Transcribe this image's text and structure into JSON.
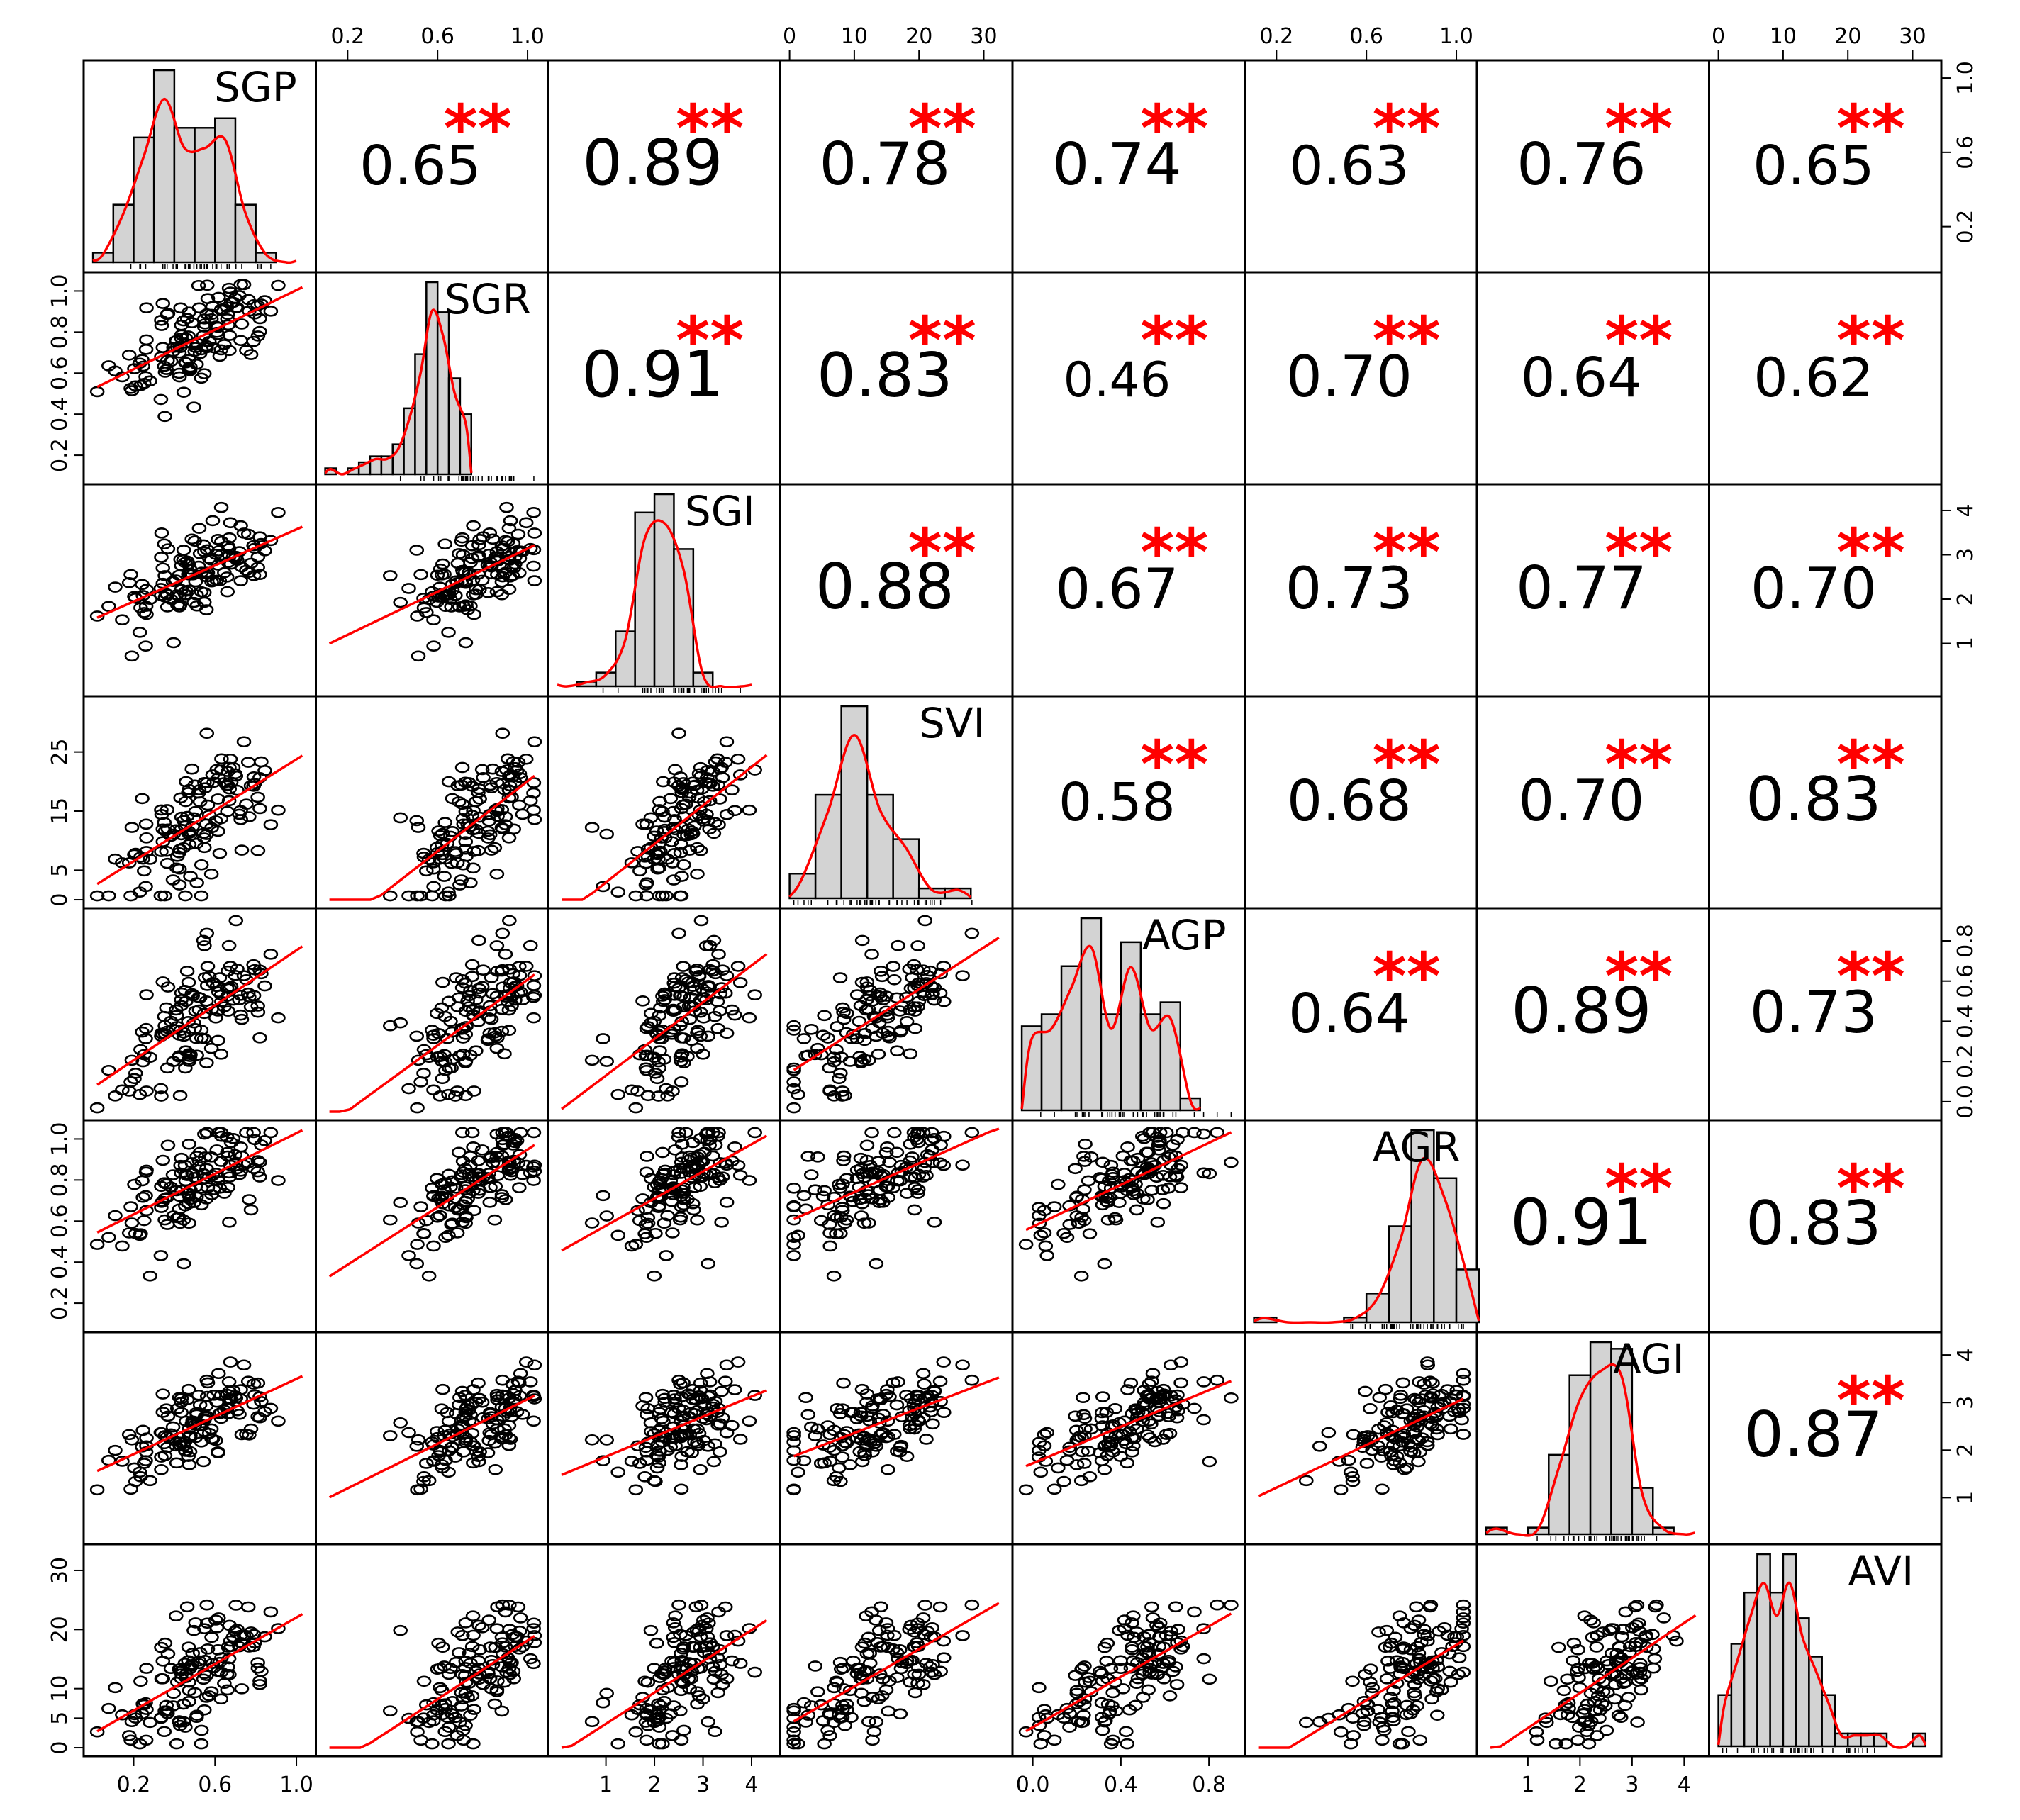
{
  "chart_data": {
    "type": "scatter-matrix",
    "variables": [
      "SGP",
      "SGR",
      "SGI",
      "SVI",
      "AGP",
      "AGR",
      "AGI",
      "AVI"
    ],
    "ranges": [
      [
        0,
        1.05
      ],
      [
        0.1,
        1.05
      ],
      [
        0,
        4.4
      ],
      [
        0,
        33
      ],
      [
        -0.05,
        0.92
      ],
      [
        0.1,
        1.05
      ],
      [
        0.2,
        4.3
      ],
      [
        0,
        33
      ]
    ],
    "tick_labels": [
      [
        "0.2",
        "0.6",
        "1.0"
      ],
      [
        "0.2",
        "0.4",
        "0.6",
        "0.8",
        "1.0"
      ],
      [
        "1",
        "2",
        "3",
        "4"
      ],
      [
        "0",
        "5",
        "15",
        "25"
      ],
      [
        "0.0",
        "0.2",
        "0.4",
        "0.6",
        "0.8"
      ],
      [
        "0.2",
        "0.4",
        "0.6",
        "0.8",
        "1.0"
      ],
      [
        "1",
        "2",
        "3",
        "4"
      ],
      [
        "0",
        "5",
        "10",
        "20",
        "30"
      ]
    ],
    "bottom_axis_ticks": [
      {
        "col": 0,
        "labels": [
          "0.2",
          "0.6",
          "1.0"
        ]
      },
      {
        "col": 2,
        "labels": [
          "1",
          "2",
          "3",
          "4"
        ]
      },
      {
        "col": 4,
        "labels": [
          "0.0",
          "0.4",
          "0.8"
        ]
      },
      {
        "col": 6,
        "labels": [
          "1",
          "2",
          "3",
          "4"
        ]
      }
    ],
    "top_axis_ticks": [
      {
        "col": 1,
        "labels": [
          "0.2",
          "0.6",
          "1.0"
        ]
      },
      {
        "col": 3,
        "labels": [
          "0",
          "10",
          "20",
          "30"
        ]
      },
      {
        "col": 5,
        "labels": [
          "0.2",
          "0.6",
          "1.0"
        ]
      },
      {
        "col": 7,
        "labels": [
          "0",
          "10",
          "20",
          "30"
        ]
      }
    ],
    "left_axis_ticks": [
      {
        "row": 1,
        "labels": [
          "0.2",
          "0.4",
          "0.6",
          "0.8",
          "1.0"
        ]
      },
      {
        "row": 3,
        "labels": [
          "0",
          "5",
          "15",
          "25"
        ]
      },
      {
        "row": 5,
        "labels": [
          "0.2",
          "0.4",
          "0.6",
          "0.8",
          "1.0"
        ]
      },
      {
        "row": 7,
        "labels": [
          "0",
          "5",
          "10",
          "20",
          "30"
        ]
      }
    ],
    "right_axis_ticks": [
      {
        "row": 0,
        "labels": [
          "0.2",
          "0.6",
          "1.0"
        ]
      },
      {
        "row": 2,
        "labels": [
          "1",
          "2",
          "3",
          "4"
        ]
      },
      {
        "row": 4,
        "labels": [
          "0.0",
          "0.2",
          "0.4",
          "0.6",
          "0.8"
        ]
      },
      {
        "row": 6,
        "labels": [
          "1",
          "2",
          "3",
          "4"
        ]
      }
    ],
    "correlations": [
      {
        "row": 0,
        "col": 1,
        "r": "0.65",
        "sig": "**"
      },
      {
        "row": 0,
        "col": 2,
        "r": "0.89",
        "sig": "**"
      },
      {
        "row": 0,
        "col": 3,
        "r": "0.78",
        "sig": "**"
      },
      {
        "row": 0,
        "col": 4,
        "r": "0.74",
        "sig": "**"
      },
      {
        "row": 0,
        "col": 5,
        "r": "0.63",
        "sig": "**"
      },
      {
        "row": 0,
        "col": 6,
        "r": "0.76",
        "sig": "**"
      },
      {
        "row": 0,
        "col": 7,
        "r": "0.65",
        "sig": "**"
      },
      {
        "row": 1,
        "col": 2,
        "r": "0.91",
        "sig": "**"
      },
      {
        "row": 1,
        "col": 3,
        "r": "0.83",
        "sig": "**"
      },
      {
        "row": 1,
        "col": 4,
        "r": "0.46",
        "sig": "**"
      },
      {
        "row": 1,
        "col": 5,
        "r": "0.70",
        "sig": "**"
      },
      {
        "row": 1,
        "col": 6,
        "r": "0.64",
        "sig": "**"
      },
      {
        "row": 1,
        "col": 7,
        "r": "0.62",
        "sig": "**"
      },
      {
        "row": 2,
        "col": 3,
        "r": "0.88",
        "sig": "**"
      },
      {
        "row": 2,
        "col": 4,
        "r": "0.67",
        "sig": "**"
      },
      {
        "row": 2,
        "col": 5,
        "r": "0.73",
        "sig": "**"
      },
      {
        "row": 2,
        "col": 6,
        "r": "0.77",
        "sig": "**"
      },
      {
        "row": 2,
        "col": 7,
        "r": "0.70",
        "sig": "**"
      },
      {
        "row": 3,
        "col": 4,
        "r": "0.58",
        "sig": "**"
      },
      {
        "row": 3,
        "col": 5,
        "r": "0.68",
        "sig": "**"
      },
      {
        "row": 3,
        "col": 6,
        "r": "0.70",
        "sig": "**"
      },
      {
        "row": 3,
        "col": 7,
        "r": "0.83",
        "sig": "**"
      },
      {
        "row": 4,
        "col": 5,
        "r": "0.64",
        "sig": "**"
      },
      {
        "row": 4,
        "col": 6,
        "r": "0.89",
        "sig": "**"
      },
      {
        "row": 4,
        "col": 7,
        "r": "0.73",
        "sig": "**"
      },
      {
        "row": 5,
        "col": 6,
        "r": "0.91",
        "sig": "**"
      },
      {
        "row": 5,
        "col": 7,
        "r": "0.83",
        "sig": "**"
      },
      {
        "row": 6,
        "col": 7,
        "r": "0.87",
        "sig": "**"
      }
    ],
    "histograms": [
      {
        "var": "SGP",
        "bin_start": 0.0,
        "bin_width": 0.1,
        "counts": [
          1,
          6,
          13,
          20,
          14,
          14,
          15,
          6,
          1,
          0
        ]
      },
      {
        "var": "SGR",
        "bin_start": 0.1,
        "bin_width": 0.05,
        "counts": [
          1,
          0,
          1,
          2,
          3,
          3,
          5,
          11,
          20,
          32,
          27,
          16,
          10
        ]
      },
      {
        "var": "SGI",
        "bin_start": 0.0,
        "bin_width": 0.4,
        "counts": [
          0,
          1,
          3,
          12,
          38,
          42,
          30,
          3,
          0,
          0
        ]
      },
      {
        "var": "SVI",
        "bin_start": 0.0,
        "bin_width": 4.0,
        "counts": [
          5,
          21,
          39,
          21,
          12,
          2,
          2
        ]
      },
      {
        "var": "AGP",
        "bin_start": -0.05,
        "bin_width": 0.09,
        "counts": [
          7,
          8,
          12,
          16,
          8,
          14,
          8,
          9,
          1
        ]
      },
      {
        "var": "AGR",
        "bin_start": 0.1,
        "bin_width": 0.1,
        "counts": [
          1,
          0,
          0,
          0,
          1,
          6,
          20,
          40,
          30,
          11
        ]
      },
      {
        "var": "AGI",
        "bin_start": 0.2,
        "bin_width": 0.4,
        "counts": [
          1,
          0,
          1,
          12,
          24,
          29,
          28,
          7,
          1,
          0
        ]
      },
      {
        "var": "AVI",
        "bin_start": 0.0,
        "bin_width": 2.0,
        "counts": [
          4,
          8,
          12,
          15,
          12,
          15,
          10,
          7,
          4,
          1,
          1,
          1,
          1,
          0,
          0,
          1
        ]
      }
    ]
  }
}
